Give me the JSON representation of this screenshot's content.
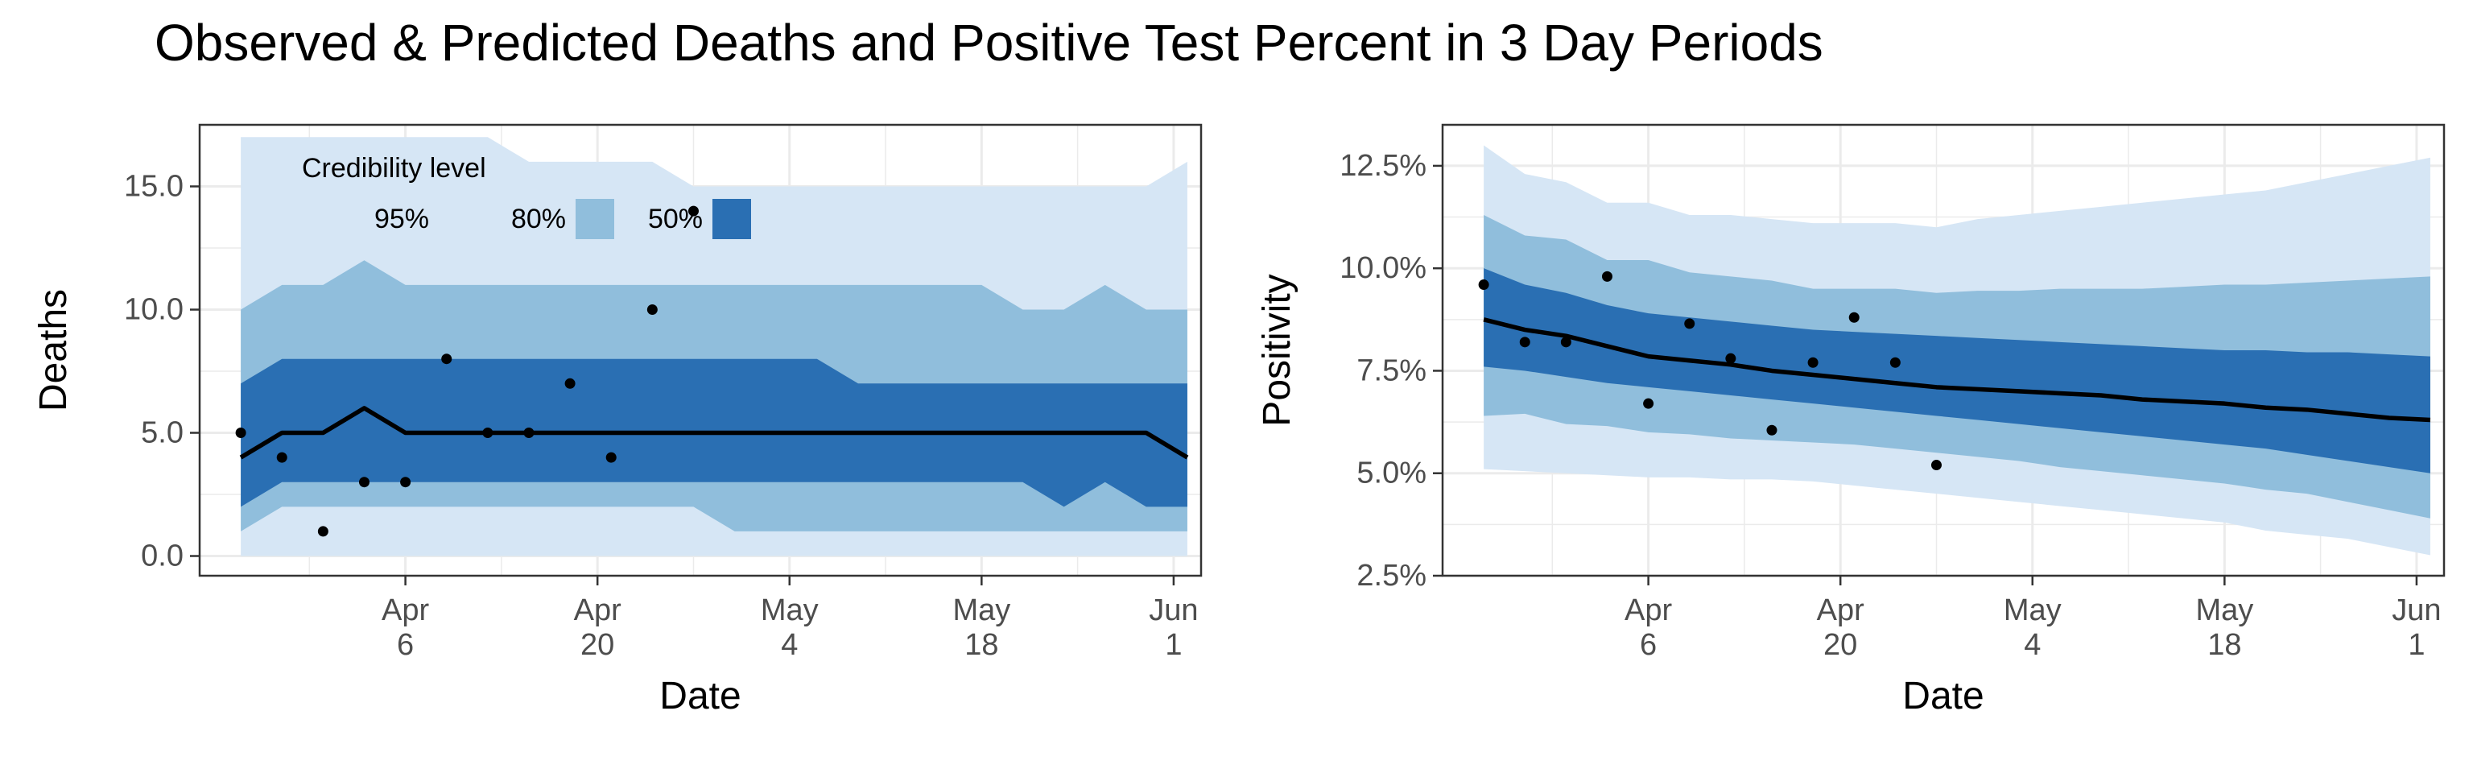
{
  "title": "Observed & Predicted Deaths and Positive Test Percent in 3 Day Periods",
  "colors": {
    "band95": "#d6e6f5",
    "band80": "#90bedc",
    "band50": "#2a6fb3",
    "median": "#000000",
    "points": "#000000",
    "grid": "#ebebeb"
  },
  "chart_data": [
    {
      "type": "area",
      "xlabel": "Date",
      "ylabel": "Deaths",
      "xlim": [
        "2020-03-22",
        "2020-06-03"
      ],
      "ylim": [
        -0.8,
        17.5
      ],
      "y_ticks": [
        0,
        5,
        10,
        15
      ],
      "y_tick_labels": [
        "0.0",
        "5.0",
        "10.0",
        "15.0"
      ],
      "x_ticks": [
        "2020-04-06",
        "2020-04-20",
        "2020-05-04",
        "2020-05-18",
        "2020-06-01"
      ],
      "x_tick_labels": [
        [
          "Apr",
          "6"
        ],
        [
          "Apr",
          "20"
        ],
        [
          "May",
          "4"
        ],
        [
          "May",
          "18"
        ],
        [
          "Jun",
          "1"
        ]
      ],
      "grid": true,
      "legend": {
        "title": "Credibility level",
        "position": "top-left",
        "items": [
          {
            "label": "95%",
            "band": "band95"
          },
          {
            "label": "80%",
            "band": "band80"
          },
          {
            "label": "50%",
            "band": "band50"
          }
        ]
      },
      "bands": {
        "dates": [
          "2020-03-25",
          "2020-03-28",
          "2020-03-31",
          "2020-04-03",
          "2020-04-06",
          "2020-04-09",
          "2020-04-12",
          "2020-04-15",
          "2020-04-18",
          "2020-04-21",
          "2020-04-24",
          "2020-04-27",
          "2020-04-30",
          "2020-05-03",
          "2020-05-06",
          "2020-05-09",
          "2020-05-12",
          "2020-05-15",
          "2020-05-18",
          "2020-05-21",
          "2020-05-24",
          "2020-05-27",
          "2020-05-30",
          "2020-06-02"
        ],
        "lo95": [
          0,
          0,
          0,
          0,
          0,
          0,
          0,
          0,
          0,
          0,
          0,
          0,
          0,
          0,
          0,
          0,
          0,
          0,
          0,
          0,
          0,
          0,
          0,
          0
        ],
        "hi95": [
          17,
          17,
          17,
          17,
          17,
          17,
          17,
          16,
          16,
          16,
          16,
          15,
          15,
          15,
          15,
          15,
          15,
          15,
          15,
          15,
          15,
          15,
          15,
          16
        ],
        "lo80": [
          1,
          2,
          2,
          2,
          2,
          2,
          2,
          2,
          2,
          2,
          2,
          2,
          1,
          1,
          1,
          1,
          1,
          1,
          1,
          1,
          1,
          1,
          1,
          1
        ],
        "hi80": [
          10,
          11,
          11,
          12,
          11,
          11,
          11,
          11,
          11,
          11,
          11,
          11,
          11,
          11,
          11,
          11,
          11,
          11,
          11,
          10,
          10,
          11,
          10,
          10
        ],
        "lo50": [
          2,
          3,
          3,
          3,
          3,
          3,
          3,
          3,
          3,
          3,
          3,
          3,
          3,
          3,
          3,
          3,
          3,
          3,
          3,
          3,
          2,
          3,
          2,
          2
        ],
        "hi50": [
          7,
          8,
          8,
          8,
          8,
          8,
          8,
          8,
          8,
          8,
          8,
          8,
          8,
          8,
          8,
          7,
          7,
          7,
          7,
          7,
          7,
          7,
          7,
          7
        ],
        "median": [
          4,
          5,
          5,
          6,
          5,
          5,
          5,
          5,
          5,
          5,
          5,
          5,
          5,
          5,
          5,
          5,
          5,
          5,
          5,
          5,
          5,
          5,
          5,
          4
        ]
      },
      "observed": [
        {
          "x": "2020-03-25",
          "y": 5
        },
        {
          "x": "2020-03-28",
          "y": 4
        },
        {
          "x": "2020-03-31",
          "y": 1
        },
        {
          "x": "2020-04-03",
          "y": 3
        },
        {
          "x": "2020-04-06",
          "y": 3
        },
        {
          "x": "2020-04-09",
          "y": 8
        },
        {
          "x": "2020-04-12",
          "y": 5
        },
        {
          "x": "2020-04-15",
          "y": 5
        },
        {
          "x": "2020-04-18",
          "y": 7
        },
        {
          "x": "2020-04-21",
          "y": 4
        },
        {
          "x": "2020-04-24",
          "y": 10
        },
        {
          "x": "2020-04-27",
          "y": 14
        }
      ]
    },
    {
      "type": "area",
      "xlabel": "Date",
      "ylabel": "Positivity",
      "xlim": [
        "2020-03-22",
        "2020-06-03"
      ],
      "ylim": [
        2.5,
        13.5
      ],
      "y_ticks": [
        2.5,
        5,
        7.5,
        10,
        12.5
      ],
      "y_tick_labels": [
        "2.5%",
        "5.0%",
        "7.5%",
        "10.0%",
        "12.5%"
      ],
      "x_ticks": [
        "2020-04-06",
        "2020-04-20",
        "2020-05-04",
        "2020-05-18",
        "2020-06-01"
      ],
      "x_tick_labels": [
        [
          "Apr",
          "6"
        ],
        [
          "Apr",
          "20"
        ],
        [
          "May",
          "4"
        ],
        [
          "May",
          "18"
        ],
        [
          "Jun",
          "1"
        ]
      ],
      "grid": true,
      "bands": {
        "dates": [
          "2020-03-25",
          "2020-03-28",
          "2020-03-31",
          "2020-04-03",
          "2020-04-06",
          "2020-04-09",
          "2020-04-12",
          "2020-04-15",
          "2020-04-18",
          "2020-04-21",
          "2020-04-24",
          "2020-04-27",
          "2020-04-30",
          "2020-05-03",
          "2020-05-06",
          "2020-05-09",
          "2020-05-12",
          "2020-05-15",
          "2020-05-18",
          "2020-05-21",
          "2020-05-24",
          "2020-05-27",
          "2020-05-30",
          "2020-06-02"
        ],
        "lo95": [
          5.1,
          5.05,
          5.0,
          4.95,
          4.9,
          4.9,
          4.85,
          4.85,
          4.8,
          4.7,
          4.6,
          4.5,
          4.4,
          4.3,
          4.2,
          4.1,
          4.0,
          3.9,
          3.8,
          3.6,
          3.5,
          3.4,
          3.2,
          3.0
        ],
        "hi95": [
          13.0,
          12.3,
          12.1,
          11.6,
          11.6,
          11.3,
          11.3,
          11.2,
          11.1,
          11.1,
          11.1,
          11.0,
          11.2,
          11.3,
          11.4,
          11.5,
          11.6,
          11.7,
          11.8,
          11.9,
          12.1,
          12.3,
          12.5,
          12.7
        ],
        "lo80": [
          6.4,
          6.45,
          6.2,
          6.15,
          6.0,
          5.95,
          5.85,
          5.8,
          5.75,
          5.7,
          5.6,
          5.5,
          5.4,
          5.3,
          5.15,
          5.05,
          4.95,
          4.85,
          4.75,
          4.6,
          4.5,
          4.3,
          4.1,
          3.9
        ],
        "hi80": [
          11.3,
          10.8,
          10.7,
          10.2,
          10.2,
          9.9,
          9.8,
          9.7,
          9.5,
          9.5,
          9.5,
          9.4,
          9.45,
          9.45,
          9.5,
          9.5,
          9.5,
          9.55,
          9.6,
          9.6,
          9.65,
          9.7,
          9.75,
          9.8
        ],
        "lo50": [
          7.6,
          7.5,
          7.35,
          7.2,
          7.1,
          7.0,
          6.9,
          6.8,
          6.7,
          6.6,
          6.5,
          6.4,
          6.3,
          6.2,
          6.1,
          6.0,
          5.9,
          5.8,
          5.7,
          5.6,
          5.45,
          5.3,
          5.15,
          5.0
        ],
        "hi50": [
          10.0,
          9.6,
          9.4,
          9.1,
          8.9,
          8.8,
          8.7,
          8.6,
          8.5,
          8.45,
          8.4,
          8.35,
          8.3,
          8.25,
          8.2,
          8.15,
          8.1,
          8.05,
          8.0,
          8.0,
          7.95,
          7.95,
          7.9,
          7.85
        ],
        "median": [
          8.75,
          8.5,
          8.35,
          8.1,
          7.85,
          7.75,
          7.65,
          7.5,
          7.4,
          7.3,
          7.2,
          7.1,
          7.05,
          7.0,
          6.95,
          6.9,
          6.8,
          6.75,
          6.7,
          6.6,
          6.55,
          6.45,
          6.35,
          6.3
        ]
      },
      "observed": [
        {
          "x": "2020-03-25",
          "y": 9.6
        },
        {
          "x": "2020-03-28",
          "y": 8.2
        },
        {
          "x": "2020-03-31",
          "y": 8.2
        },
        {
          "x": "2020-04-03",
          "y": 9.8
        },
        {
          "x": "2020-04-06",
          "y": 6.7
        },
        {
          "x": "2020-04-09",
          "y": 8.65
        },
        {
          "x": "2020-04-12",
          "y": 7.8
        },
        {
          "x": "2020-04-15",
          "y": 6.05
        },
        {
          "x": "2020-04-18",
          "y": 7.7
        },
        {
          "x": "2020-04-21",
          "y": 8.8
        },
        {
          "x": "2020-04-24",
          "y": 7.7
        },
        {
          "x": "2020-04-27",
          "y": 5.2
        }
      ]
    }
  ]
}
